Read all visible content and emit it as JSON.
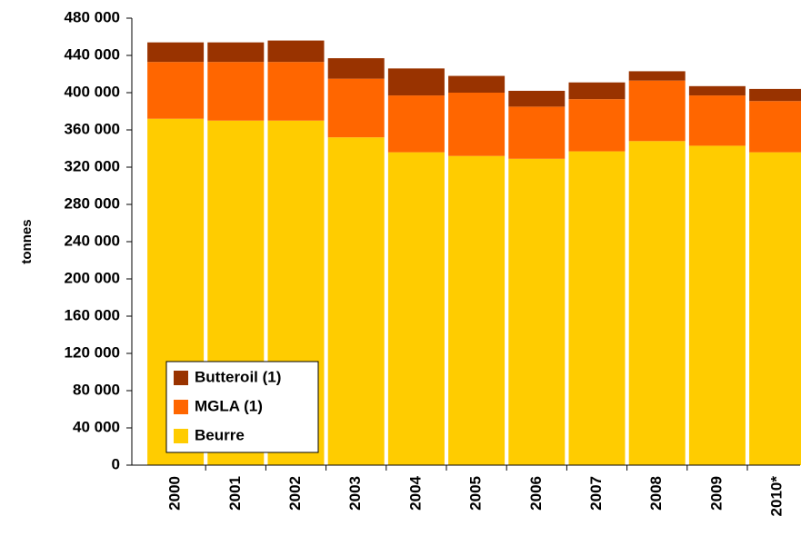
{
  "chart_data": {
    "type": "stacked_bar",
    "y_label": "tonnes",
    "categories": [
      "2000",
      "2001",
      "2002",
      "2003",
      "2004",
      "2005",
      "2006",
      "2007",
      "2008",
      "2009",
      "2010*"
    ],
    "series": [
      {
        "name": "Beurre",
        "color": "#ffcc00",
        "values": [
          372000,
          370000,
          370000,
          352000,
          336000,
          332000,
          329000,
          337000,
          348000,
          343000,
          336000
        ]
      },
      {
        "name": "MGLA (1)",
        "color": "#ff6600",
        "values": [
          61000,
          63000,
          63000,
          63000,
          61000,
          68000,
          56000,
          56000,
          65000,
          54000,
          55000
        ]
      },
      {
        "name": "Butteroil (1)",
        "color": "#993300",
        "values": [
          21000,
          21000,
          23000,
          22000,
          29000,
          18000,
          17000,
          18000,
          10000,
          10000,
          13000
        ]
      }
    ],
    "ylim": [
      0,
      480000
    ],
    "yticks": [
      {
        "value": 0,
        "label": "0"
      },
      {
        "value": 40000,
        "label": "40 000"
      },
      {
        "value": 80000,
        "label": "80 000"
      },
      {
        "value": 120000,
        "label": "120 000"
      },
      {
        "value": 160000,
        "label": "160 000"
      },
      {
        "value": 200000,
        "label": "200 000"
      },
      {
        "value": 240000,
        "label": "240 000"
      },
      {
        "value": 280000,
        "label": "280 000"
      },
      {
        "value": 320000,
        "label": "320 000"
      },
      {
        "value": 360000,
        "label": "360 000"
      },
      {
        "value": 400000,
        "label": "400 000"
      },
      {
        "value": 440000,
        "label": "440 000"
      },
      {
        "value": 480000,
        "label": "480 000"
      }
    ],
    "grid": false,
    "legend": "lower left"
  }
}
